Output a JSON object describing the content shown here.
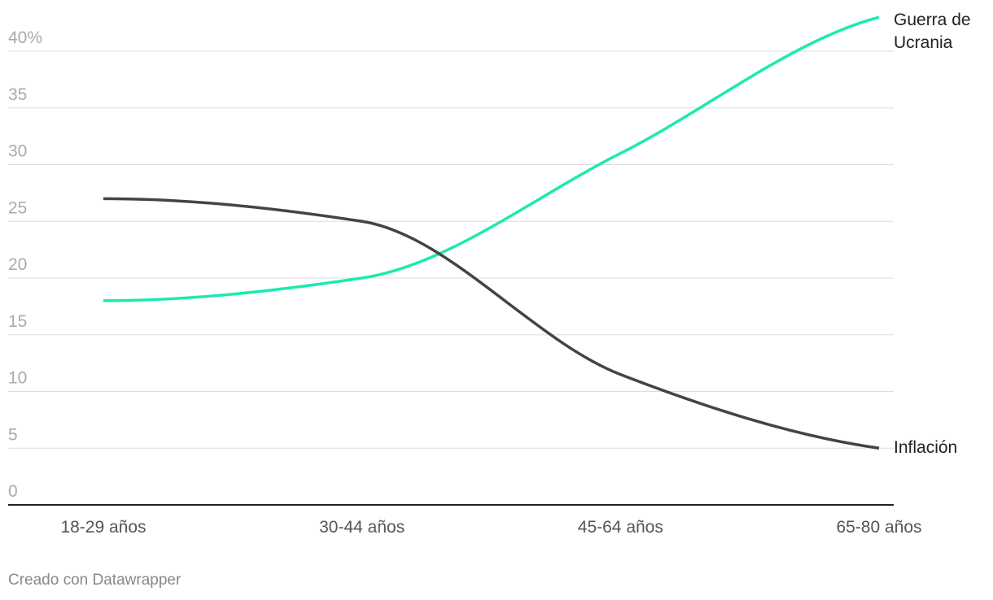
{
  "chart_data": {
    "type": "line",
    "categories": [
      "18-29 años",
      "30-44 años",
      "45-64 años",
      "65-80 años"
    ],
    "series": [
      {
        "name": "Guerra de Ucrania",
        "color": "#1ceab0",
        "values": [
          18,
          20,
          31,
          43
        ]
      },
      {
        "name": "Inflación",
        "color": "#444444",
        "values": [
          27,
          25,
          11.5,
          5
        ]
      }
    ],
    "ylim": [
      0,
      40
    ],
    "yticks": [
      0,
      5,
      10,
      15,
      20,
      25,
      30,
      35,
      {
        "value": 40,
        "label": "40%"
      }
    ],
    "grid": true,
    "credit": "Creado con Datawrapper"
  }
}
